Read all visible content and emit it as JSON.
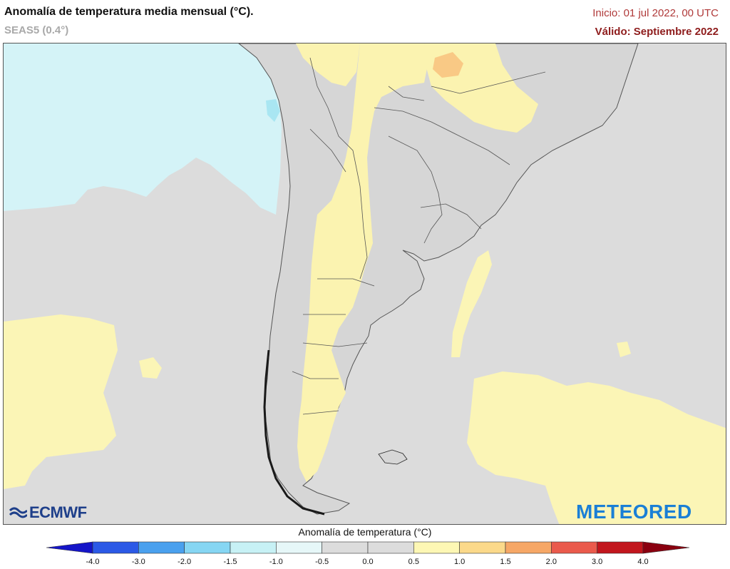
{
  "header": {
    "title": "Anomalía de temperatura media mensual (°C).",
    "subtitle": "SEAS5 (0.4°)",
    "init": "Inicio: 01 jul 2022, 00 UTC",
    "valid": "Válido: Septiembre 2022"
  },
  "logos": {
    "left": "ECMWF",
    "right": "METEORED"
  },
  "legend": {
    "title": "Anomalía de temperatura (°C)",
    "ticks": [
      "-4.0",
      "-3.0",
      "-2.0",
      "-1.5",
      "-1.0",
      "-0.5",
      "0.0",
      "0.5",
      "1.0",
      "1.5",
      "2.0",
      "3.0",
      "4.0"
    ],
    "colors": [
      "#1515c8",
      "#2b59e6",
      "#4aa0ee",
      "#86d6f3",
      "#c7f1f5",
      "#e6f7f8",
      "#dcdcdc",
      "#dcdcdc",
      "#fdf7b4",
      "#fbd98a",
      "#f6a766",
      "#ea5a4c",
      "#c2161d",
      "#8a0010"
    ]
  }
}
